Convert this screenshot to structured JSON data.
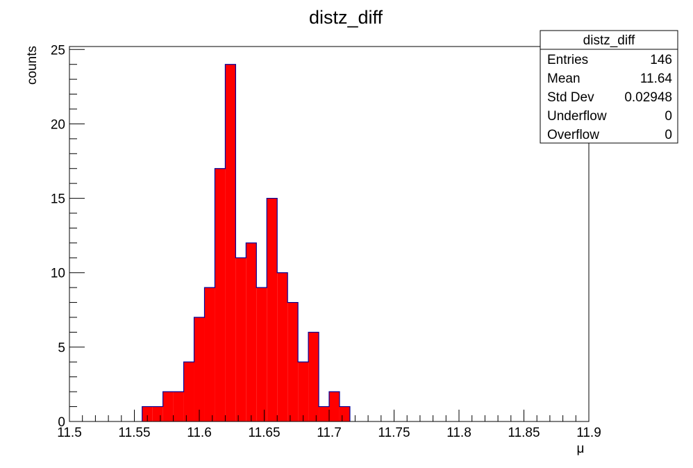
{
  "chart_data": {
    "type": "bar",
    "title": "distz_diff",
    "xlabel": "μ",
    "ylabel": "counts",
    "xlim": [
      11.5,
      11.9
    ],
    "ylim": [
      0,
      25.2
    ],
    "bin_width": 0.008,
    "x_ticks": [
      "11.5",
      "11.55",
      "11.6",
      "11.65",
      "11.7",
      "11.75",
      "11.8",
      "11.85",
      "11.9"
    ],
    "y_ticks": [
      "0",
      "5",
      "10",
      "15",
      "20",
      "25"
    ],
    "fill_color": "#ff0000",
    "line_color": "#000099",
    "bins": [
      {
        "x": 11.556,
        "y": 1
      },
      {
        "x": 11.564,
        "y": 1
      },
      {
        "x": 11.572,
        "y": 2
      },
      {
        "x": 11.58,
        "y": 2
      },
      {
        "x": 11.588,
        "y": 4
      },
      {
        "x": 11.596,
        "y": 7
      },
      {
        "x": 11.604,
        "y": 9
      },
      {
        "x": 11.612,
        "y": 17
      },
      {
        "x": 11.62,
        "y": 24
      },
      {
        "x": 11.628,
        "y": 11
      },
      {
        "x": 11.636,
        "y": 12
      },
      {
        "x": 11.644,
        "y": 9
      },
      {
        "x": 11.652,
        "y": 15
      },
      {
        "x": 11.66,
        "y": 10
      },
      {
        "x": 11.668,
        "y": 8
      },
      {
        "x": 11.676,
        "y": 4
      },
      {
        "x": 11.684,
        "y": 6
      },
      {
        "x": 11.692,
        "y": 1
      },
      {
        "x": 11.7,
        "y": 2
      },
      {
        "x": 11.708,
        "y": 1
      }
    ],
    "stats_box": {
      "title": "distz_diff",
      "rows": [
        {
          "label": "Entries",
          "value": "146"
        },
        {
          "label": "Mean",
          "value": "11.64"
        },
        {
          "label": "Std Dev",
          "value": "0.02948"
        },
        {
          "label": "Underflow",
          "value": "0"
        },
        {
          "label": "Overflow",
          "value": "0"
        }
      ]
    }
  }
}
